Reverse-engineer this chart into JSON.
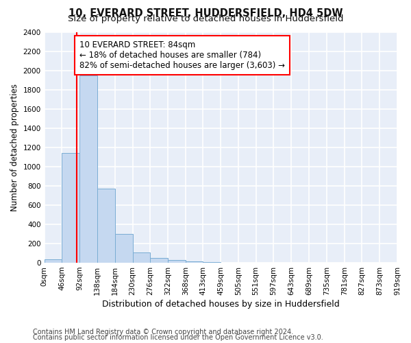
{
  "title": "10, EVERARD STREET, HUDDERSFIELD, HD4 5DW",
  "subtitle": "Size of property relative to detached houses in Huddersfield",
  "xlabel": "Distribution of detached houses by size in Huddersfield",
  "ylabel": "Number of detached properties",
  "bin_edges": [
    0,
    46,
    92,
    138,
    184,
    230,
    276,
    322,
    368,
    413,
    459,
    505,
    551,
    597,
    643,
    689,
    735,
    781,
    827,
    873,
    919
  ],
  "bar_heights": [
    35,
    1140,
    1950,
    770,
    300,
    105,
    50,
    30,
    15,
    5,
    3,
    0,
    0,
    0,
    0,
    0,
    0,
    0,
    0,
    0
  ],
  "bar_color": "#c5d8f0",
  "bar_edge_color": "#7aadd4",
  "vline_x": 84,
  "vline_color": "red",
  "annotation_text": "10 EVERARD STREET: 84sqm\n← 18% of detached houses are smaller (784)\n82% of semi-detached houses are larger (3,603) →",
  "annotation_box_color": "white",
  "annotation_box_edge_color": "red",
  "ylim": [
    0,
    2400
  ],
  "yticks": [
    0,
    200,
    400,
    600,
    800,
    1000,
    1200,
    1400,
    1600,
    1800,
    2000,
    2200,
    2400
  ],
  "xtick_labels": [
    "0sqm",
    "46sqm",
    "92sqm",
    "138sqm",
    "184sqm",
    "230sqm",
    "276sqm",
    "322sqm",
    "368sqm",
    "413sqm",
    "459sqm",
    "505sqm",
    "551sqm",
    "597sqm",
    "643sqm",
    "689sqm",
    "735sqm",
    "781sqm",
    "827sqm",
    "873sqm",
    "919sqm"
  ],
  "footer_line1": "Contains HM Land Registry data © Crown copyright and database right 2024.",
  "footer_line2": "Contains public sector information licensed under the Open Government Licence v3.0.",
  "bg_color": "#ffffff",
  "plot_bg_color": "#e8eef8",
  "grid_color": "#ffffff",
  "title_fontsize": 10.5,
  "subtitle_fontsize": 9.5,
  "xlabel_fontsize": 9,
  "ylabel_fontsize": 8.5,
  "tick_fontsize": 7.5,
  "annotation_fontsize": 8.5,
  "footer_fontsize": 7
}
